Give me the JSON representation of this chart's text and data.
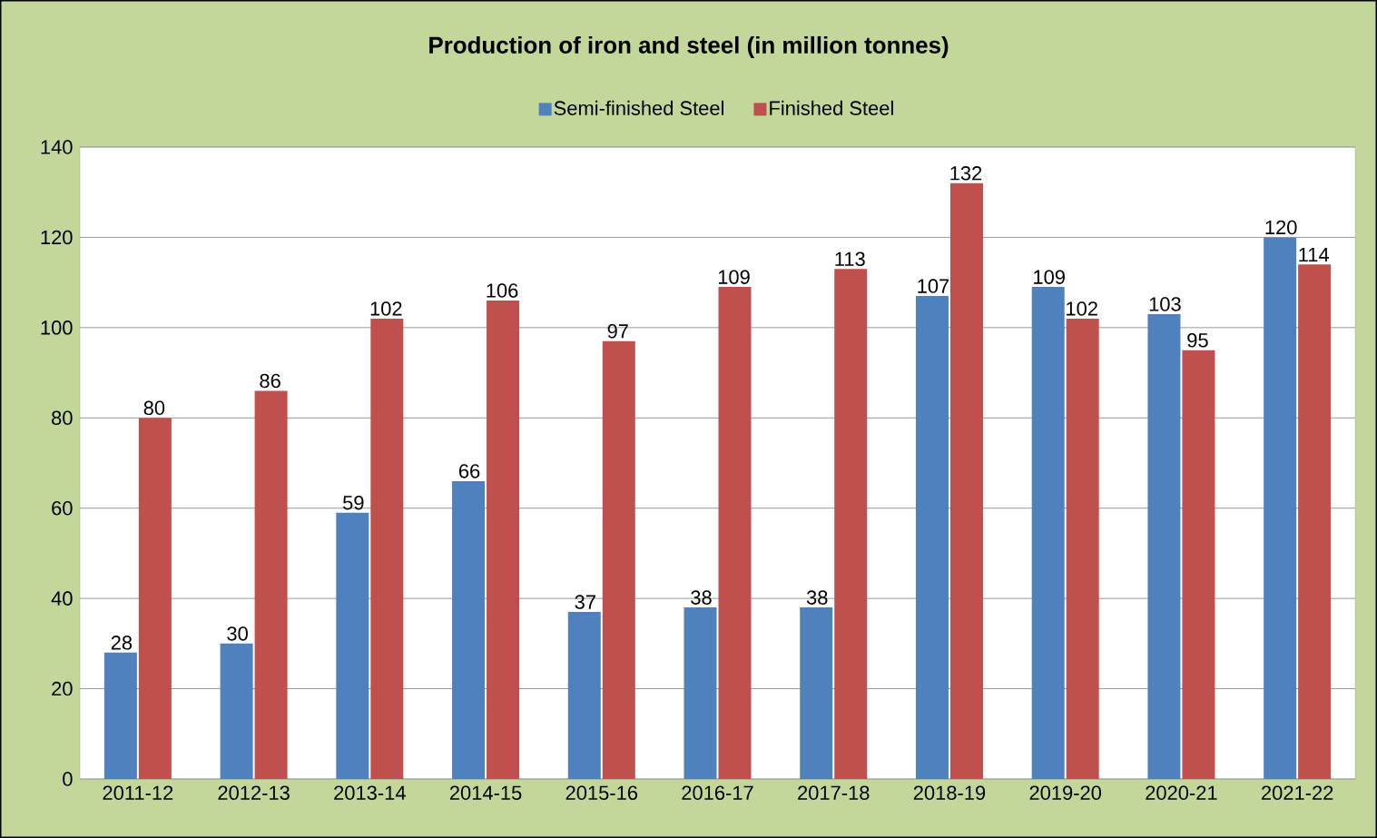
{
  "chart_data": {
    "type": "bar",
    "title": "Production of iron and steel (in million tonnes)",
    "categories": [
      "2011-12",
      "2012-13",
      "2013-14",
      "2014-15",
      "2015-16",
      "2016-17",
      "2017-18",
      "2018-19",
      "2019-20",
      "2020-21",
      "2021-22"
    ],
    "series": [
      {
        "name": "Semi-finished Steel",
        "color": "#4f81bd",
        "values": [
          28,
          30,
          59,
          66,
          37,
          38,
          38,
          107,
          109,
          103,
          120
        ]
      },
      {
        "name": "Finished Steel",
        "color": "#c0504d",
        "values": [
          80,
          86,
          102,
          106,
          97,
          109,
          113,
          132,
          102,
          95,
          114
        ]
      }
    ],
    "ylim": [
      0,
      140
    ],
    "yticks": [
      0,
      20,
      40,
      60,
      80,
      100,
      120,
      140
    ],
    "grid": "y",
    "legend": "top",
    "data_labels": true
  }
}
